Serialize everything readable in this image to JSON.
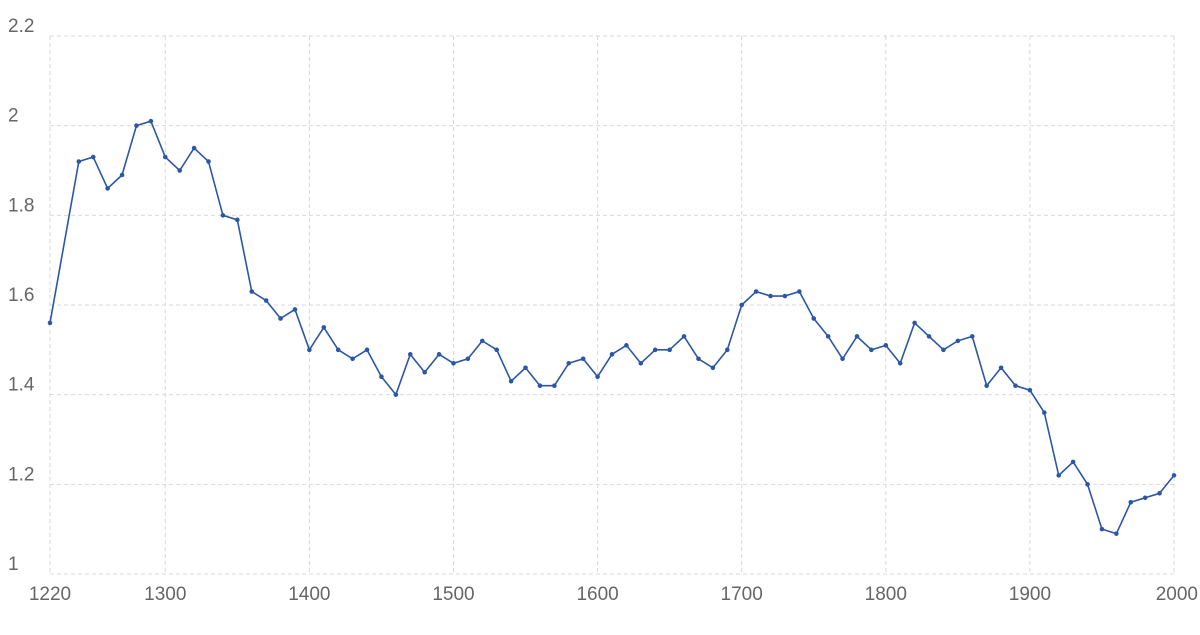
{
  "chart_data": {
    "type": "line",
    "title": "",
    "xlabel": "",
    "ylabel": "",
    "xlim": [
      1220,
      2000
    ],
    "ylim": [
      1,
      2.2
    ],
    "x_ticks": [
      "1220",
      "1300",
      "1400",
      "1500",
      "1600",
      "1700",
      "1800",
      "1900",
      "2000"
    ],
    "y_ticks": [
      "1",
      "1.2",
      "1.4",
      "1.6",
      "1.8",
      "2",
      "2.2"
    ],
    "grid": true,
    "legend": "none",
    "series_color": "#2c57a6",
    "series": [
      {
        "x": [
          1220,
          1240,
          1250,
          1260,
          1270,
          1280,
          1290,
          1300,
          1310,
          1320,
          1330,
          1340,
          1350,
          1360,
          1370,
          1380,
          1390,
          1400,
          1410,
          1420,
          1430,
          1440,
          1450,
          1460,
          1470,
          1480,
          1490,
          1500,
          1510,
          1520,
          1530,
          1540,
          1550,
          1560,
          1570,
          1580,
          1590,
          1600,
          1610,
          1620,
          1630,
          1640,
          1650,
          1660,
          1670,
          1680,
          1690,
          1700,
          1710,
          1720,
          1730,
          1740,
          1750,
          1760,
          1770,
          1780,
          1790,
          1800,
          1810,
          1820,
          1830,
          1840,
          1850,
          1860,
          1870,
          1880,
          1890,
          1900,
          1910,
          1920,
          1930,
          1940,
          1950,
          1960,
          1970,
          1980,
          1990,
          2000
        ],
        "y": [
          1.56,
          1.92,
          1.93,
          1.86,
          1.89,
          2.0,
          2.01,
          1.93,
          1.9,
          1.95,
          1.92,
          1.8,
          1.79,
          1.63,
          1.61,
          1.57,
          1.59,
          1.5,
          1.55,
          1.5,
          1.48,
          1.5,
          1.44,
          1.4,
          1.49,
          1.45,
          1.49,
          1.47,
          1.48,
          1.52,
          1.5,
          1.43,
          1.46,
          1.42,
          1.42,
          1.47,
          1.48,
          1.44,
          1.49,
          1.51,
          1.47,
          1.5,
          1.5,
          1.53,
          1.48,
          1.46,
          1.5,
          1.6,
          1.63,
          1.62,
          1.62,
          1.63,
          1.57,
          1.53,
          1.48,
          1.53,
          1.5,
          1.51,
          1.47,
          1.56,
          1.53,
          1.5,
          1.52,
          1.53,
          1.42,
          1.46,
          1.42,
          1.41,
          1.36,
          1.22,
          1.25,
          1.2,
          1.1,
          1.09,
          1.16,
          1.17,
          1.18,
          1.22
        ]
      }
    ]
  }
}
